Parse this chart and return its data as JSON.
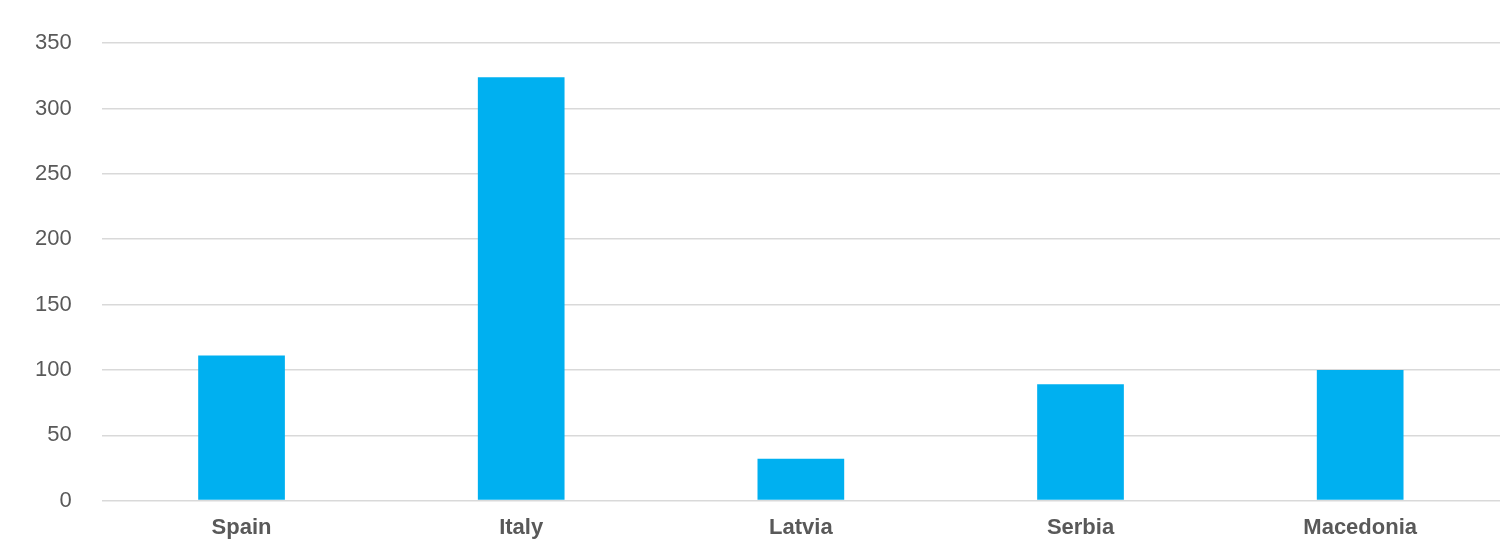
{
  "chart_data": {
    "type": "bar",
    "categories": [
      "Spain",
      "Italy",
      "Latvia",
      "Serbia",
      "Macedonia"
    ],
    "values": [
      111,
      324,
      32,
      89,
      100
    ],
    "color": "#00b0f0",
    "ylim": [
      0,
      350
    ],
    "yticks": [
      0,
      50,
      100,
      150,
      200,
      250,
      300,
      350
    ],
    "grid": "y",
    "legend": false
  }
}
